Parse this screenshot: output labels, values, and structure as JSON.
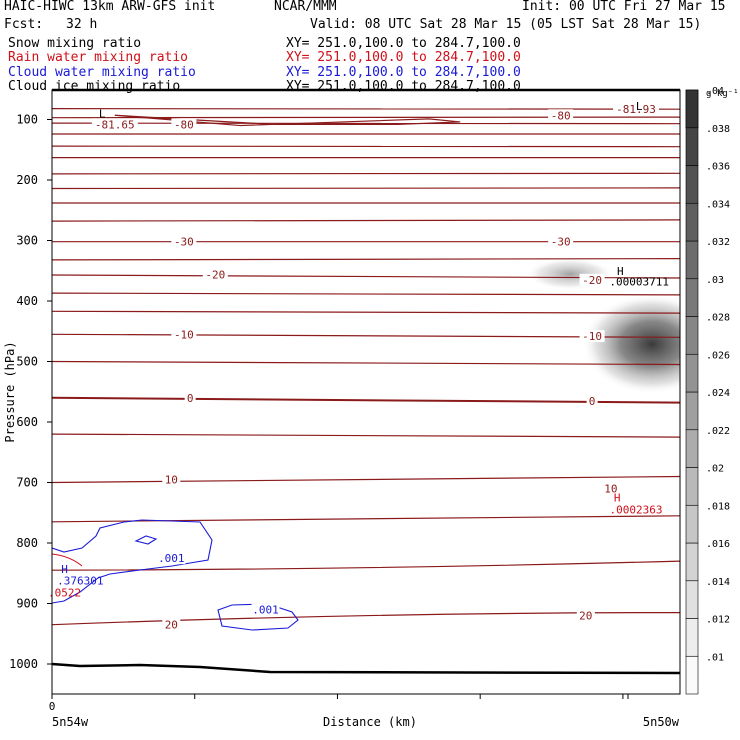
{
  "header": {
    "model": "HAIC-HIWC 13km ARW-GFS init",
    "org": "NCAR/MMM",
    "init": "Init: 00 UTC Fri 27 Mar 15",
    "fcst_label": "Fcst:",
    "fcst_value": "32 h",
    "valid": "Valid: 08 UTC Sat 28 Mar 15 (05 LST Sat 28 Mar 15)",
    "fields": [
      {
        "name": "Snow mixing ratio",
        "xy": "XY= 251.0,100.0 to 284.7,100.0",
        "color": "#000000"
      },
      {
        "name": "Rain water mixing ratio",
        "xy": "XY= 251.0,100.0 to 284.7,100.0",
        "color": "#d0101a"
      },
      {
        "name": "Cloud water mixing ratio",
        "xy": "XY= 251.0,100.0 to 284.7,100.0",
        "color": "#1a1ad8"
      },
      {
        "name": "Cloud ice mixing ratio",
        "xy": "XY= 251.0,100.0 to 284.7,100.0",
        "color": "#000000"
      }
    ]
  },
  "chart_data": {
    "type": "contour",
    "xlabel": "Distance (km)",
    "ylabel": "Pressure (hPa)",
    "x_ticks": [
      "0"
    ],
    "x_end_labels": [
      "5n54w",
      "5n50w"
    ],
    "y_ticks": [
      100,
      200,
      300,
      400,
      500,
      600,
      700,
      800,
      900,
      1000
    ],
    "ylim": [
      1050,
      70
    ],
    "colorbar": {
      "unit": "g kg⁻¹",
      "levels": [
        0.01,
        0.012,
        0.014,
        0.016,
        0.018,
        0.02,
        0.022,
        0.024,
        0.026,
        0.028,
        0.03,
        0.032,
        0.034,
        0.036,
        0.038,
        0.04
      ],
      "labels": [
        ".01",
        ".012",
        ".014",
        ".016",
        ".018",
        ".02",
        ".022",
        ".024",
        ".026",
        ".028",
        ".03",
        ".032",
        ".034",
        ".036",
        ".038",
        ".04"
      ]
    },
    "temperature_labels": [
      {
        "text": "-81.65",
        "p": 108,
        "pos": 0.1
      },
      {
        "text": "-80",
        "p": 108,
        "pos": 0.21
      },
      {
        "text": "-80",
        "p": 93,
        "pos": 0.81
      },
      {
        "text": "-81.93",
        "p": 83,
        "pos": 0.93
      },
      {
        "text": "-30",
        "p": 302,
        "pos": 0.21
      },
      {
        "text": "-30",
        "p": 302,
        "pos": 0.81
      },
      {
        "text": "-20",
        "p": 356,
        "pos": 0.26
      },
      {
        "text": "-20",
        "p": 365,
        "pos": 0.86
      },
      {
        "text": "-10",
        "p": 455,
        "pos": 0.21
      },
      {
        "text": "-10",
        "p": 458,
        "pos": 0.86
      },
      {
        "text": "0",
        "p": 560,
        "pos": 0.22
      },
      {
        "text": "0",
        "p": 565,
        "pos": 0.86
      },
      {
        "text": "10",
        "p": 695,
        "pos": 0.19
      },
      {
        "text": "10",
        "p": 710,
        "pos": 0.89
      },
      {
        "text": "20",
        "p": 935,
        "pos": 0.19
      },
      {
        "text": "20",
        "p": 920,
        "pos": 0.85
      }
    ],
    "extrema_labels": [
      {
        "text": "L",
        "p": 78,
        "pos": 0.935,
        "color": "#000000"
      },
      {
        "text": "L",
        "p": 90,
        "pos": 0.08,
        "color": "#000000"
      },
      {
        "text": "H",
        "p": 350,
        "pos": 0.905,
        "color": "#000000"
      },
      {
        "text": ".00003711",
        "p": 368,
        "pos": 0.935,
        "color": "#000000"
      },
      {
        "text": "H",
        "p": 725,
        "pos": 0.9,
        "color": "#d0101a"
      },
      {
        "text": ".0002363",
        "p": 745,
        "pos": 0.93,
        "color": "#d0101a"
      },
      {
        "text": "H",
        "p": 843,
        "pos": 0.02,
        "color": "#1a1ad8"
      },
      {
        "text": ".376301",
        "p": 862,
        "pos": 0.045,
        "color": "#1a1ad8"
      },
      {
        "text": ".0522",
        "p": 882,
        "pos": 0.02,
        "color": "#d0101a"
      }
    ],
    "cloud_water_labels": [
      {
        "text": ".001",
        "p": 825,
        "pos": 0.19
      },
      {
        "text": ".001",
        "p": 910,
        "pos": 0.34
      }
    ],
    "colors": {
      "temperature": "#8b1a1a",
      "cloud_water": "#1a1ad8",
      "snow": "#000000",
      "rain": "#d0101a"
    }
  }
}
